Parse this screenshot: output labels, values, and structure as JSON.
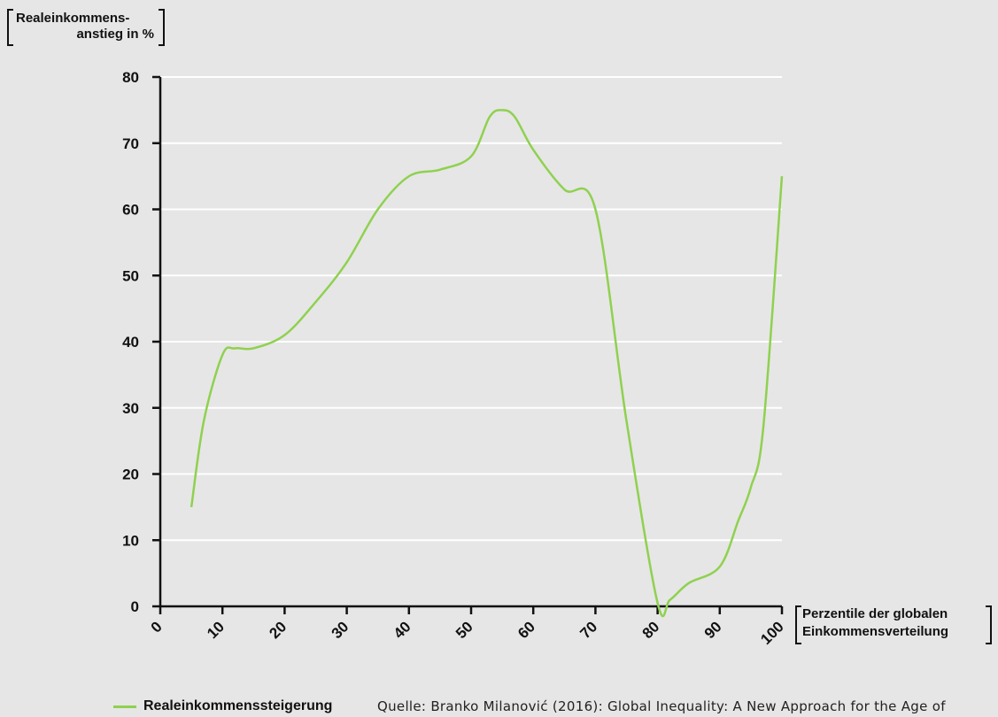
{
  "chart_data": {
    "type": "line",
    "ylabel": [
      "Realeinkommens-",
      "anstieg in %"
    ],
    "xlabel": [
      "Perzentile der globalen",
      "Einkommensverteilung"
    ],
    "xlim": [
      0,
      100
    ],
    "ylim": [
      0,
      80
    ],
    "xticks": [
      0,
      10,
      20,
      30,
      40,
      50,
      60,
      70,
      80,
      90,
      100
    ],
    "yticks": [
      0,
      10,
      20,
      30,
      40,
      50,
      60,
      70,
      80
    ],
    "grid": "horizontal",
    "series": [
      {
        "name": "Realeinkommenssteigerung",
        "color": "#8fd14f",
        "x": [
          5,
          7,
          10,
          12,
          15,
          20,
          25,
          30,
          35,
          40,
          45,
          50,
          53,
          55,
          57,
          60,
          65,
          70,
          75,
          80,
          82,
          85,
          90,
          93,
          95,
          97,
          100
        ],
        "y": [
          15,
          28,
          38,
          39,
          39,
          41,
          46,
          52,
          60,
          65,
          66,
          68,
          74,
          75,
          74,
          69,
          63,
          60,
          28,
          0.5,
          1,
          3.5,
          6,
          13,
          18,
          27,
          65
        ]
      }
    ]
  },
  "legend": {
    "label": "Realeinkommenssteigerung"
  },
  "source": "Quelle: Branko Milanović (2016): Global Inequality: A New Approach for the Age of"
}
